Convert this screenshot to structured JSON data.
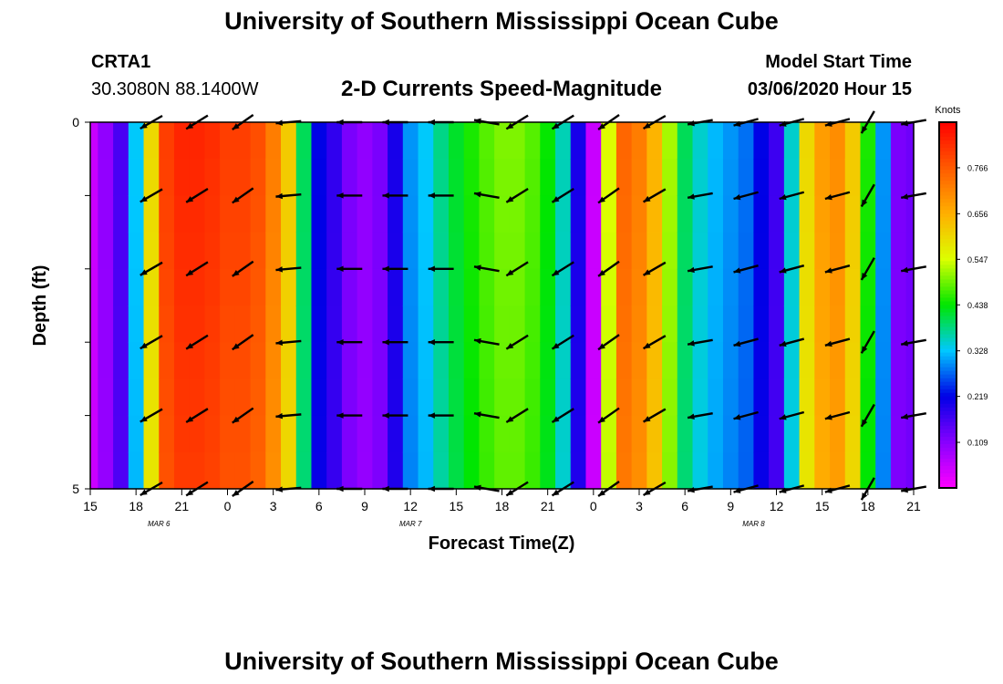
{
  "page": {
    "top_title": "University of Southern Mississippi Ocean Cube",
    "bottom_title": "University of Southern Mississippi Ocean Cube",
    "station_id": "CRTA1",
    "coordinates": "30.3080N 88.1400W",
    "model_start_label": "Model Start Time",
    "model_start_value": "03/06/2020 Hour 15"
  },
  "colorbar": {
    "unit": "Knots",
    "ticks": [
      "0.766",
      "0.656",
      "0.547",
      "0.438",
      "0.328",
      "0.219",
      "0.109"
    ],
    "tick_values": [
      0.766,
      0.656,
      0.547,
      0.438,
      0.328,
      0.219,
      0.109
    ],
    "min": 0.0,
    "max": 0.875
  },
  "chart_data": {
    "type": "heatmap",
    "title": "2-D Currents Speed-Magnitude",
    "xlabel": "Forecast Time(Z)",
    "ylabel": "Depth (ft)",
    "x_ticks": [
      "15",
      "18",
      "21",
      "0",
      "3",
      "6",
      "9",
      "12",
      "15",
      "18",
      "21",
      "0",
      "3",
      "6",
      "9",
      "12",
      "15",
      "18",
      "21"
    ],
    "x_range_hours": [
      0,
      54
    ],
    "date_labels": [
      {
        "label": "MAR 6",
        "hour": 4.5
      },
      {
        "label": "MAR 7",
        "hour": 21
      },
      {
        "label": "MAR 8",
        "hour": 43.5
      }
    ],
    "y_ticks": [
      "0",
      "5"
    ],
    "y_range": [
      0,
      5
    ],
    "speed_by_hour": [
      0.05,
      0.1,
      0.16,
      0.33,
      0.6,
      0.8,
      0.83,
      0.83,
      0.82,
      0.8,
      0.8,
      0.78,
      0.72,
      0.62,
      0.4,
      0.22,
      0.18,
      0.12,
      0.1,
      0.12,
      0.2,
      0.3,
      0.33,
      0.38,
      0.42,
      0.45,
      0.48,
      0.5,
      0.5,
      0.48,
      0.44,
      0.36,
      0.2,
      0.05,
      0.55,
      0.75,
      0.72,
      0.65,
      0.52,
      0.4,
      0.35,
      0.32,
      0.3,
      0.28,
      0.22,
      0.17,
      0.35,
      0.6,
      0.68,
      0.7,
      0.62,
      0.45,
      0.3,
      0.12,
      0.13
    ],
    "arrow_depths_ft": [
      0,
      1,
      2,
      3,
      4,
      5
    ],
    "arrows_deg_by_hour": [
      {
        "hour": 4,
        "deg": 150
      },
      {
        "hour": 7,
        "deg": 148
      },
      {
        "hour": 10,
        "deg": 145
      },
      {
        "hour": 13,
        "deg": 175
      },
      {
        "hour": 17,
        "deg": 180
      },
      {
        "hour": 20,
        "deg": 180
      },
      {
        "hour": 23,
        "deg": 180
      },
      {
        "hour": 26,
        "deg": 190
      },
      {
        "hour": 28,
        "deg": 148
      },
      {
        "hour": 31,
        "deg": 148
      },
      {
        "hour": 34,
        "deg": 145
      },
      {
        "hour": 37,
        "deg": 150
      },
      {
        "hour": 40,
        "deg": 170
      },
      {
        "hour": 43,
        "deg": 165
      },
      {
        "hour": 46,
        "deg": 165
      },
      {
        "hour": 49,
        "deg": 165
      },
      {
        "hour": 51,
        "deg": 120
      },
      {
        "hour": 54,
        "deg": 170
      }
    ]
  }
}
